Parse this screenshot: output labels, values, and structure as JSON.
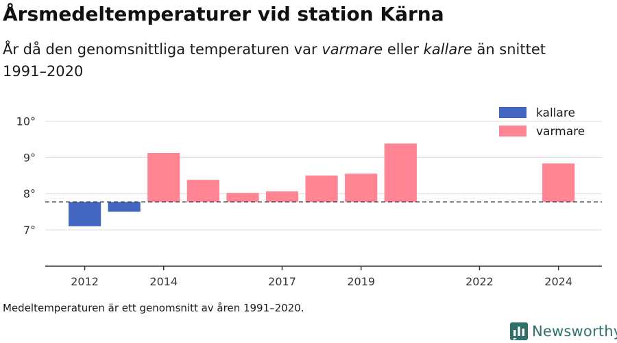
{
  "title": "Årsmedeltemperaturer vid station Kärna",
  "subtitle": {
    "part1": "År då den genomsnittliga temperaturen var ",
    "warm_word": "varmare",
    "part2": " eller ",
    "cold_word": "kallare",
    "part3": " än snittet 1991–2020"
  },
  "footnote": "Medeltemperaturen är ett genomsnitt av åren 1991–2020.",
  "brand": {
    "name": "Newsworthy",
    "icon": "bar-chart-logo-icon"
  },
  "colors": {
    "kallare": "#4366c0",
    "varmare": "#ff8595",
    "baseline": "#333333",
    "grid": "#d9d9d9",
    "brand": "#2f6f6a"
  },
  "chart_data": {
    "type": "bar",
    "baseline": 7.77,
    "x": [
      2012,
      2013,
      2014,
      2015,
      2016,
      2017,
      2018,
      2019,
      2020,
      2024
    ],
    "values": [
      7.1,
      7.5,
      9.12,
      8.38,
      8.02,
      8.06,
      8.5,
      8.55,
      9.38,
      8.83
    ],
    "series": [
      {
        "name": "kallare",
        "color": "#4366c0"
      },
      {
        "name": "varmare",
        "color": "#ff8595"
      }
    ],
    "x_tick_labels": [
      "2012",
      "2014",
      "2017",
      "2019",
      "2022",
      "2024"
    ],
    "x_tick_values": [
      2012,
      2014,
      2017,
      2019,
      2022,
      2024
    ],
    "y_ticks": [
      7,
      8,
      9,
      10
    ],
    "y_tick_labels": [
      "7°",
      "8°",
      "9°",
      "10°"
    ],
    "xlim": [
      2011,
      2025.1
    ],
    "ylim": [
      6.0,
      10.5
    ],
    "grid": true,
    "legend_position": "top-right",
    "xlabel": "",
    "ylabel": ""
  }
}
